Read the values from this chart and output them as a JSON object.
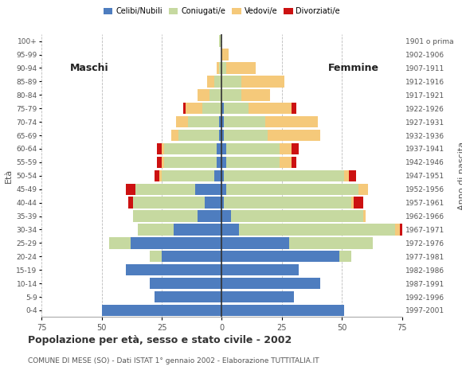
{
  "age_groups": [
    "0-4",
    "5-9",
    "10-14",
    "15-19",
    "20-24",
    "25-29",
    "30-34",
    "35-39",
    "40-44",
    "45-49",
    "50-54",
    "55-59",
    "60-64",
    "65-69",
    "70-74",
    "75-79",
    "80-84",
    "85-89",
    "90-94",
    "95-99",
    "100+"
  ],
  "birth_years": [
    "1997-2001",
    "1992-1996",
    "1987-1991",
    "1982-1986",
    "1977-1981",
    "1972-1976",
    "1967-1971",
    "1962-1966",
    "1957-1961",
    "1952-1956",
    "1947-1951",
    "1942-1946",
    "1937-1941",
    "1932-1936",
    "1927-1931",
    "1922-1926",
    "1917-1921",
    "1912-1916",
    "1907-1911",
    "1902-1906",
    "1901 o prima"
  ],
  "males": {
    "celibe": [
      50,
      28,
      30,
      40,
      25,
      38,
      20,
      10,
      7,
      11,
      3,
      2,
      2,
      1,
      1,
      0,
      0,
      0,
      0,
      0,
      0
    ],
    "coniugato": [
      0,
      0,
      0,
      0,
      5,
      9,
      15,
      27,
      30,
      25,
      22,
      22,
      22,
      17,
      13,
      8,
      5,
      3,
      1,
      0,
      1
    ],
    "vedovo": [
      0,
      0,
      0,
      0,
      0,
      0,
      0,
      0,
      0,
      0,
      1,
      1,
      1,
      3,
      5,
      7,
      5,
      3,
      1,
      0,
      0
    ],
    "divorziato": [
      0,
      0,
      0,
      0,
      0,
      0,
      0,
      0,
      2,
      4,
      2,
      2,
      2,
      0,
      0,
      1,
      0,
      0,
      0,
      0,
      0
    ]
  },
  "females": {
    "nubile": [
      51,
      30,
      41,
      32,
      49,
      28,
      7,
      4,
      1,
      2,
      1,
      2,
      2,
      1,
      1,
      1,
      0,
      0,
      0,
      0,
      0
    ],
    "coniugata": [
      0,
      0,
      0,
      0,
      5,
      35,
      65,
      55,
      53,
      55,
      50,
      22,
      22,
      18,
      17,
      10,
      8,
      8,
      2,
      0,
      0
    ],
    "vedova": [
      0,
      0,
      0,
      0,
      0,
      0,
      2,
      1,
      1,
      4,
      2,
      5,
      5,
      22,
      22,
      18,
      12,
      18,
      12,
      3,
      0
    ],
    "divorziata": [
      0,
      0,
      0,
      0,
      0,
      0,
      2,
      0,
      4,
      0,
      3,
      2,
      3,
      0,
      0,
      2,
      0,
      0,
      0,
      0,
      0
    ]
  },
  "colors": {
    "celibe": "#4e7dbf",
    "coniugato": "#c6d9a0",
    "vedovo": "#f5c97a",
    "divorziato": "#cc1111"
  },
  "xlim": 75,
  "title": "Popolazione per età, sesso e stato civile - 2002",
  "subtitle": "COMUNE DI MESE (SO) - Dati ISTAT 1° gennaio 2002 - Elaborazione TUTTITALIA.IT",
  "legend_labels": [
    "Celibi/Nubili",
    "Coniugati/e",
    "Vedovi/e",
    "Divorziati/e"
  ],
  "label_maschi": "Maschi",
  "label_femmine": "Femmine",
  "ylabel_left": "Età",
  "ylabel_right": "Anno di nascita",
  "background_color": "#ffffff",
  "bar_height": 0.85,
  "grid_color": "#bbbbbb",
  "text_color": "#555555",
  "title_color": "#333333"
}
